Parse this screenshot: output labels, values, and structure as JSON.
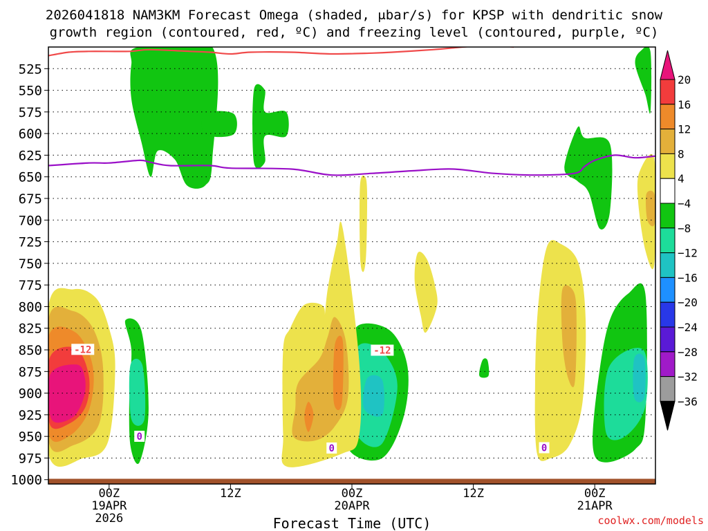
{
  "chart_data": {
    "type": "heatmap",
    "title_line1": "2026041818 NAM3KM Forecast Omega (shaded, μbar/s) for KPSP with dendritic snow",
    "title_line2": "growth region (contoured, red, ºC) and freezing level (contoured, purple, ºC)",
    "xlabel": "Forecast Time (UTC)",
    "watermark": "coolwx.com/models",
    "x_range_hours": [
      -6,
      54
    ],
    "x_ticks": [
      {
        "hour": 0,
        "label": "00Z",
        "sub1": "19APR",
        "sub2": "2026"
      },
      {
        "hour": 12,
        "label": "12Z",
        "sub1": "",
        "sub2": ""
      },
      {
        "hour": 24,
        "label": "00Z",
        "sub1": "20APR",
        "sub2": ""
      },
      {
        "hour": 36,
        "label": "12Z",
        "sub1": "",
        "sub2": ""
      },
      {
        "hour": 48,
        "label": "00Z",
        "sub1": "21APR",
        "sub2": ""
      }
    ],
    "y_range_hpa": [
      500,
      1005
    ],
    "y_ticks": [
      525,
      550,
      575,
      600,
      625,
      650,
      675,
      700,
      725,
      750,
      775,
      800,
      825,
      850,
      875,
      900,
      925,
      950,
      975,
      1000
    ],
    "colorbar": {
      "labels": [
        "20",
        "16",
        "12",
        "8",
        "4",
        "−4",
        "−8",
        "−12",
        "−16",
        "−20",
        "−24",
        "−28",
        "−32",
        "−36"
      ],
      "colors": [
        "#f23c3c",
        "#ee8a2a",
        "#e3b03a",
        "#ede24c",
        "#ffffff",
        "#11c511",
        "#1ddc9a",
        "#1fc3c3",
        "#1e90ff",
        "#2838e8",
        "#5a1ad6",
        "#a01ac8",
        "#9c9c9c"
      ],
      "top_color": "#e8147a",
      "bottom_color": "#000000"
    },
    "dgz_line": {
      "label": "-12",
      "color": "#f04a4a",
      "points": [
        [
          -6,
          510
        ],
        [
          -4,
          506
        ],
        [
          -2,
          505
        ],
        [
          2,
          505
        ],
        [
          4,
          503
        ],
        [
          8,
          505
        ],
        [
          10,
          506
        ],
        [
          12,
          508
        ],
        [
          14,
          506
        ],
        [
          18,
          506
        ],
        [
          22,
          508
        ],
        [
          26,
          507
        ],
        [
          28,
          506
        ],
        [
          32,
          503
        ],
        [
          34,
          501
        ],
        [
          36,
          499
        ],
        [
          38,
          498
        ],
        [
          40,
          500
        ]
      ],
      "label_hours": [
        -2.6,
        27
      ]
    },
    "freezing_level": {
      "label": "0",
      "color": "#9a10c8",
      "points": [
        [
          -6,
          637
        ],
        [
          -2,
          634
        ],
        [
          0,
          634
        ],
        [
          3,
          631
        ],
        [
          4,
          633
        ],
        [
          6,
          637
        ],
        [
          10,
          637
        ],
        [
          12,
          640
        ],
        [
          18,
          641
        ],
        [
          22,
          648
        ],
        [
          26,
          646
        ],
        [
          30,
          643
        ],
        [
          34,
          641
        ],
        [
          38,
          646
        ],
        [
          42,
          648
        ],
        [
          46,
          646
        ],
        [
          47,
          638
        ],
        [
          48,
          631
        ],
        [
          50,
          625
        ],
        [
          52,
          628
        ],
        [
          54,
          626
        ]
      ],
      "label_hours": [
        3.0,
        22.0,
        43.0
      ]
    },
    "ground": {
      "color": "#a1522a",
      "top_hpa": 999
    },
    "omega_areas": [
      {
        "level": "-4",
        "pts": [
          [
            2.9,
            500
          ],
          [
            10.2,
            500
          ],
          [
            10.2,
            630
          ],
          [
            9.5,
            660
          ],
          [
            7.7,
            660
          ],
          [
            6.5,
            630
          ],
          [
            4.8,
            620
          ],
          [
            4.1,
            650
          ],
          [
            3.2,
            610
          ],
          [
            2.2,
            560
          ],
          [
            2.2,
            520
          ]
        ]
      },
      {
        "level": "-4",
        "pts": [
          [
            9.5,
            577
          ],
          [
            12.3,
            577
          ],
          [
            12.3,
            601
          ],
          [
            9.5,
            601
          ]
        ]
      },
      {
        "level": "-4",
        "pts": [
          [
            14.3,
            550
          ],
          [
            15.4,
            550
          ],
          [
            15.4,
            575
          ],
          [
            17.5,
            575
          ],
          [
            17.5,
            603
          ],
          [
            15.4,
            603
          ],
          [
            15.4,
            633
          ],
          [
            14.3,
            633
          ]
        ]
      },
      {
        "level": "-4",
        "pts": [
          [
            1.6,
            816
          ],
          [
            3.2,
            828
          ],
          [
            3.9,
            920
          ],
          [
            3.0,
            980
          ],
          [
            2.1,
            960
          ],
          [
            2.0,
            900
          ],
          [
            2.2,
            850
          ]
        ]
      },
      {
        "level": "-8",
        "pts": [
          [
            2.1,
            868
          ],
          [
            3.3,
            868
          ],
          [
            3.5,
            930
          ],
          [
            2.2,
            930
          ]
        ]
      },
      {
        "level": "-4",
        "pts": [
          [
            24.6,
            822
          ],
          [
            27.8,
            828
          ],
          [
            29.5,
            870
          ],
          [
            29.1,
            928
          ],
          [
            27.0,
            975
          ],
          [
            23.8,
            967
          ],
          [
            23.4,
            920
          ],
          [
            23.7,
            860
          ]
        ]
      },
      {
        "level": "-8",
        "pts": [
          [
            24.6,
            846
          ],
          [
            27.0,
            852
          ],
          [
            28.5,
            892
          ],
          [
            27.0,
            958
          ],
          [
            24.6,
            950
          ],
          [
            24.0,
            900
          ]
        ]
      },
      {
        "level": "-12",
        "pts": [
          [
            25.5,
            883
          ],
          [
            27.0,
            885
          ],
          [
            27.0,
            925
          ],
          [
            25.2,
            918
          ]
        ]
      },
      {
        "level": "-4",
        "pts": [
          [
            49.5,
            815
          ],
          [
            51.3,
            785
          ],
          [
            53.0,
            785
          ],
          [
            53.0,
            930
          ],
          [
            52.0,
            965
          ],
          [
            49.0,
            980
          ],
          [
            47.8,
            960
          ],
          [
            48.4,
            880
          ]
        ]
      },
      {
        "level": "-8",
        "pts": [
          [
            49.4,
            870
          ],
          [
            52.8,
            850
          ],
          [
            53.0,
            915
          ],
          [
            51.0,
            950
          ],
          [
            49.1,
            945
          ]
        ]
      },
      {
        "level": "-12",
        "pts": [
          [
            51.9,
            860
          ],
          [
            52.9,
            860
          ],
          [
            52.9,
            905
          ],
          [
            51.9,
            905
          ]
        ]
      },
      {
        "level": "-4",
        "pts": [
          [
            46.3,
            593
          ],
          [
            47.0,
            605
          ],
          [
            49.5,
            612
          ],
          [
            49.5,
            690
          ],
          [
            48.5,
            710
          ],
          [
            47.4,
            668
          ],
          [
            46.3,
            655
          ],
          [
            45.0,
            640
          ]
        ]
      },
      {
        "level": "-4",
        "pts": [
          [
            52.5,
            505
          ],
          [
            53.5,
            505
          ],
          [
            53.5,
            575
          ],
          [
            53.0,
            555
          ],
          [
            52.0,
            520
          ]
        ]
      },
      {
        "level": "-4",
        "pts": [
          [
            36.9,
            862
          ],
          [
            37.4,
            862
          ],
          [
            37.5,
            880
          ],
          [
            36.6,
            880
          ]
        ]
      },
      {
        "level": "4",
        "pts": [
          [
            -6,
            800
          ],
          [
            -3.5,
            780
          ],
          [
            -1.3,
            790
          ],
          [
            0,
            825
          ],
          [
            0.6,
            870
          ],
          [
            -0.1,
            956
          ],
          [
            -2.5,
            975
          ],
          [
            -6,
            970
          ]
        ]
      },
      {
        "level": "8",
        "pts": [
          [
            -6,
            815
          ],
          [
            -3.6,
            805
          ],
          [
            -1.6,
            825
          ],
          [
            -0.6,
            870
          ],
          [
            -1.0,
            936
          ],
          [
            -3.5,
            960
          ],
          [
            -6,
            955
          ]
        ]
      },
      {
        "level": "12",
        "pts": [
          [
            -6,
            835
          ],
          [
            -3.3,
            830
          ],
          [
            -1.6,
            870
          ],
          [
            -2.0,
            920
          ],
          [
            -4.0,
            950
          ],
          [
            -6,
            945
          ]
        ]
      },
      {
        "level": "16",
        "pts": [
          [
            -5.9,
            860
          ],
          [
            -3.3,
            848
          ],
          [
            -2.0,
            880
          ],
          [
            -2.3,
            915
          ],
          [
            -3.9,
            935
          ],
          [
            -5.9,
            935
          ]
        ]
      },
      {
        "level": "20",
        "pts": [
          [
            -5.8,
            878
          ],
          [
            -3.2,
            867
          ],
          [
            -2.4,
            882
          ],
          [
            -2.5,
            905
          ],
          [
            -3.6,
            928
          ],
          [
            -5.7,
            930
          ]
        ]
      },
      {
        "level": "4",
        "pts": [
          [
            17.2,
            850
          ],
          [
            17.9,
            825
          ],
          [
            19.3,
            798
          ],
          [
            21.2,
            800
          ],
          [
            21.2,
            826
          ],
          [
            21.6,
            780
          ],
          [
            22.5,
            727
          ],
          [
            23.1,
            710
          ],
          [
            24.7,
            860
          ],
          [
            24.7,
            950
          ],
          [
            23.0,
            970
          ],
          [
            17.6,
            985
          ],
          [
            17.2,
            948
          ]
        ]
      },
      {
        "level": "8",
        "pts": [
          [
            18.7,
            888
          ],
          [
            20.8,
            860
          ],
          [
            21.6,
            835
          ],
          [
            22.3,
            812
          ],
          [
            23.4,
            840
          ],
          [
            23.6,
            905
          ],
          [
            22.2,
            940
          ],
          [
            20.3,
            955
          ],
          [
            18.2,
            950
          ],
          [
            18.4,
            918
          ]
        ]
      },
      {
        "level": "12",
        "pts": [
          [
            19.3,
            927
          ],
          [
            19.7,
            910
          ],
          [
            20.2,
            925
          ],
          [
            19.7,
            945
          ]
        ]
      },
      {
        "level": "12",
        "pts": [
          [
            22.3,
            845
          ],
          [
            23.1,
            840
          ],
          [
            23.0,
            912
          ],
          [
            22.2,
            910
          ]
        ]
      },
      {
        "level": "4",
        "pts": [
          [
            24.8,
            660
          ],
          [
            25.3,
            650
          ],
          [
            25.5,
            670
          ],
          [
            25.4,
            740
          ],
          [
            25.1,
            760
          ],
          [
            24.8,
            740
          ]
        ]
      },
      {
        "level": "4",
        "pts": [
          [
            30.5,
            738
          ],
          [
            31.4,
            745
          ],
          [
            32.2,
            775
          ],
          [
            32.4,
            800
          ],
          [
            31.3,
            830
          ],
          [
            30.8,
            810
          ],
          [
            30.2,
            770
          ]
        ]
      },
      {
        "level": "4",
        "pts": [
          [
            43.3,
            730
          ],
          [
            44.7,
            728
          ],
          [
            46.4,
            750
          ],
          [
            47.1,
            815
          ],
          [
            46.8,
            910
          ],
          [
            45.5,
            960
          ],
          [
            43.7,
            975
          ],
          [
            42.3,
            970
          ],
          [
            42.1,
            890
          ],
          [
            42.4,
            800
          ]
        ]
      },
      {
        "level": "8",
        "pts": [
          [
            44.8,
            780
          ],
          [
            46.0,
            785
          ],
          [
            46.2,
            830
          ],
          [
            46.0,
            890
          ],
          [
            45.3,
            880
          ],
          [
            44.8,
            840
          ]
        ]
      },
      {
        "level": "4",
        "pts": [
          [
            52.4,
            645
          ],
          [
            53.9,
            630
          ],
          [
            53.9,
            750
          ],
          [
            53.0,
            735
          ],
          [
            52.3,
            680
          ]
        ]
      },
      {
        "level": "8",
        "pts": [
          [
            53.1,
            670
          ],
          [
            53.9,
            670
          ],
          [
            53.9,
            705
          ],
          [
            53.2,
            700
          ]
        ]
      }
    ]
  }
}
